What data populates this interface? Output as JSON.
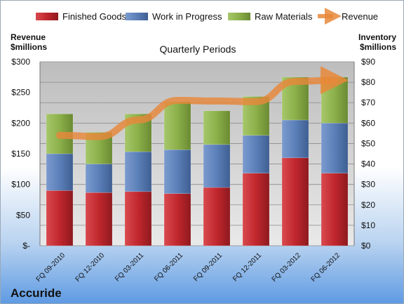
{
  "company": "Accuride",
  "chart_data": {
    "type": "bar",
    "stacked": true,
    "title": "Quarterly Periods",
    "y_left_label": [
      "Revenue",
      "$millions"
    ],
    "y_right_label": [
      "Inventory",
      "$millions"
    ],
    "categories": [
      "FQ 09-2010",
      "FQ 12-2010",
      "FQ 03-2011",
      "FQ 06-2011",
      "FQ 09-2011",
      "FQ 12-2011",
      "FQ 03-2012",
      "FQ 06-2012"
    ],
    "y_left_ticks": [
      "$-",
      "$50",
      "$100",
      "$150",
      "$200",
      "$250",
      "$300"
    ],
    "y_right_ticks": [
      "$0",
      "$10",
      "$20",
      "$30",
      "$40",
      "$50",
      "$60",
      "$70",
      "$80",
      "$90"
    ],
    "y_right_lim": [
      0,
      90
    ],
    "y_left_lim": [
      0,
      300
    ],
    "series": [
      {
        "name": "Finished Goods",
        "axis": "right",
        "color": "#c0272d",
        "values": [
          27,
          26,
          26.5,
          25.5,
          28.5,
          35.5,
          43,
          35.5
        ]
      },
      {
        "name": "Work in Progress",
        "axis": "right",
        "color": "#5b7fb8",
        "values": [
          18,
          14,
          19.5,
          21.5,
          21,
          18.5,
          18.5,
          24.5
        ]
      },
      {
        "name": "Raw Materials",
        "axis": "right",
        "color": "#8cb04a",
        "values": [
          19.5,
          15.5,
          18.5,
          23.5,
          16.5,
          19,
          21,
          22.5
        ]
      },
      {
        "name": "Revenue",
        "axis": "left",
        "type": "line",
        "color": "#e8883a",
        "values": [
          180,
          178,
          205,
          237,
          236,
          235,
          268,
          270
        ]
      }
    ],
    "legend_position": "top",
    "grid": true
  }
}
